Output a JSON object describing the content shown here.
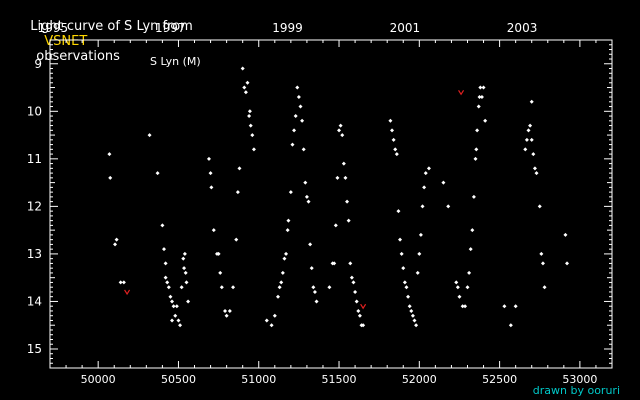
{
  "header": {
    "title_prefix": "Light curve of S Lyn from",
    "source": "VSNET",
    "title_suffix": "observations",
    "source_color": "#ffd700"
  },
  "credit": "drawn by ooruri",
  "colors": {
    "background": "#000000",
    "foreground": "#ffffff",
    "observation": "#ffffff",
    "fainter_than": "#e02020",
    "credit": "#00c8c8"
  },
  "chart_data": {
    "type": "scatter",
    "title": "Light curve of S Lyn from VSNET observations",
    "annotation": "S Lyn (M)",
    "xlabel": "",
    "ylabel": "",
    "xlim": [
      49700,
      53200
    ],
    "ylim": [
      15.4,
      8.5
    ],
    "y_inverted": true,
    "x_ticks": [
      50000,
      50500,
      51000,
      51500,
      52000,
      52500,
      53000
    ],
    "x_tick_labels": [
      "50000",
      "50500",
      "51000",
      "51500",
      "52000",
      "52500",
      "53000"
    ],
    "top_ticks": [
      {
        "label": "1995",
        "x": 49718
      },
      {
        "label": "1997",
        "x": 50449
      },
      {
        "label": "1999",
        "x": 51179
      },
      {
        "label": "2001",
        "x": 51910
      },
      {
        "label": "2003",
        "x": 52640
      }
    ],
    "y_ticks": [
      9,
      10,
      11,
      12,
      13,
      14,
      15
    ],
    "y_tick_labels": [
      "9",
      "10",
      "11",
      "12",
      "13",
      "14",
      "15"
    ],
    "grid": false,
    "series": [
      {
        "style": "observation",
        "points": [
          [
            50070,
            10.9
          ],
          [
            50075,
            11.4
          ],
          [
            50105,
            12.8
          ],
          [
            50115,
            12.7
          ],
          [
            50140,
            13.6
          ],
          [
            50160,
            13.6
          ],
          [
            50320,
            10.5
          ],
          [
            50370,
            11.3
          ],
          [
            50400,
            12.4
          ],
          [
            50410,
            12.9
          ],
          [
            50420,
            13.2
          ],
          [
            50420,
            13.5
          ],
          [
            50430,
            13.6
          ],
          [
            50440,
            13.7
          ],
          [
            50450,
            13.9
          ],
          [
            50460,
            14.0
          ],
          [
            50470,
            14.1
          ],
          [
            50480,
            14.3
          ],
          [
            50490,
            14.1
          ],
          [
            50500,
            14.4
          ],
          [
            50460,
            14.4
          ],
          [
            50510,
            14.5
          ],
          [
            50520,
            13.7
          ],
          [
            50530,
            13.1
          ],
          [
            50535,
            13.3
          ],
          [
            50540,
            13.0
          ],
          [
            50545,
            13.4
          ],
          [
            50550,
            13.6
          ],
          [
            50560,
            14.0
          ],
          [
            50690,
            11.0
          ],
          [
            50700,
            11.3
          ],
          [
            50705,
            11.6
          ],
          [
            50720,
            12.5
          ],
          [
            50740,
            13.0
          ],
          [
            50750,
            13.0
          ],
          [
            50760,
            13.4
          ],
          [
            50770,
            13.7
          ],
          [
            50790,
            14.2
          ],
          [
            50800,
            14.3
          ],
          [
            50820,
            14.2
          ],
          [
            50840,
            13.7
          ],
          [
            50860,
            12.7
          ],
          [
            50870,
            11.7
          ],
          [
            50880,
            11.2
          ],
          [
            50900,
            9.1
          ],
          [
            50910,
            9.5
          ],
          [
            50920,
            9.6
          ],
          [
            50930,
            9.4
          ],
          [
            50940,
            10.1
          ],
          [
            50945,
            10.0
          ],
          [
            50950,
            10.3
          ],
          [
            50960,
            10.5
          ],
          [
            50970,
            10.8
          ],
          [
            51050,
            14.4
          ],
          [
            51080,
            14.5
          ],
          [
            51100,
            14.3
          ],
          [
            51120,
            13.9
          ],
          [
            51130,
            13.7
          ],
          [
            51140,
            13.6
          ],
          [
            51150,
            13.4
          ],
          [
            51160,
            13.1
          ],
          [
            51170,
            13.0
          ],
          [
            51180,
            12.5
          ],
          [
            51185,
            12.3
          ],
          [
            51200,
            11.7
          ],
          [
            51210,
            10.7
          ],
          [
            51220,
            10.4
          ],
          [
            51230,
            10.1
          ],
          [
            51240,
            9.5
          ],
          [
            51250,
            9.7
          ],
          [
            51260,
            9.9
          ],
          [
            51270,
            10.2
          ],
          [
            51280,
            10.8
          ],
          [
            51290,
            11.5
          ],
          [
            51300,
            11.8
          ],
          [
            51310,
            11.9
          ],
          [
            51320,
            12.8
          ],
          [
            51330,
            13.3
          ],
          [
            51340,
            13.7
          ],
          [
            51350,
            13.8
          ],
          [
            51360,
            14.0
          ],
          [
            51440,
            13.7
          ],
          [
            51460,
            13.2
          ],
          [
            51470,
            13.2
          ],
          [
            51480,
            12.4
          ],
          [
            51490,
            11.4
          ],
          [
            51500,
            10.4
          ],
          [
            51510,
            10.3
          ],
          [
            51520,
            10.5
          ],
          [
            51530,
            11.1
          ],
          [
            51540,
            11.4
          ],
          [
            51550,
            11.9
          ],
          [
            51560,
            12.3
          ],
          [
            51570,
            13.2
          ],
          [
            51580,
            13.5
          ],
          [
            51590,
            13.6
          ],
          [
            51600,
            13.8
          ],
          [
            51610,
            14.0
          ],
          [
            51620,
            14.2
          ],
          [
            51630,
            14.3
          ],
          [
            51640,
            14.5
          ],
          [
            51650,
            14.5
          ],
          [
            51820,
            10.2
          ],
          [
            51830,
            10.4
          ],
          [
            51840,
            10.6
          ],
          [
            51850,
            10.8
          ],
          [
            51860,
            10.9
          ],
          [
            51870,
            12.1
          ],
          [
            51880,
            12.7
          ],
          [
            51890,
            13.0
          ],
          [
            51900,
            13.3
          ],
          [
            51910,
            13.6
          ],
          [
            51920,
            13.7
          ],
          [
            51930,
            13.9
          ],
          [
            51940,
            14.1
          ],
          [
            51950,
            14.2
          ],
          [
            51960,
            14.3
          ],
          [
            51970,
            14.4
          ],
          [
            51980,
            14.5
          ],
          [
            51990,
            13.4
          ],
          [
            52000,
            13.0
          ],
          [
            52010,
            12.6
          ],
          [
            52020,
            12.0
          ],
          [
            52030,
            11.6
          ],
          [
            52040,
            11.3
          ],
          [
            52060,
            11.2
          ],
          [
            52150,
            11.5
          ],
          [
            52180,
            12.0
          ],
          [
            52230,
            13.6
          ],
          [
            52240,
            13.7
          ],
          [
            52250,
            13.9
          ],
          [
            52270,
            14.1
          ],
          [
            52285,
            14.1
          ],
          [
            52300,
            13.7
          ],
          [
            52310,
            13.4
          ],
          [
            52320,
            12.9
          ],
          [
            52330,
            12.5
          ],
          [
            52340,
            11.8
          ],
          [
            52350,
            11.0
          ],
          [
            52355,
            10.8
          ],
          [
            52360,
            10.4
          ],
          [
            52370,
            9.9
          ],
          [
            52375,
            9.7
          ],
          [
            52380,
            9.5
          ],
          [
            52390,
            9.7
          ],
          [
            52400,
            9.5
          ],
          [
            52410,
            10.2
          ],
          [
            52530,
            14.1
          ],
          [
            52570,
            14.5
          ],
          [
            52600,
            14.1
          ],
          [
            52660,
            10.8
          ],
          [
            52670,
            10.6
          ],
          [
            52680,
            10.4
          ],
          [
            52690,
            10.3
          ],
          [
            52700,
            9.8
          ],
          [
            52700,
            10.6
          ],
          [
            52710,
            10.9
          ],
          [
            52720,
            11.2
          ],
          [
            52730,
            11.3
          ],
          [
            52750,
            12.0
          ],
          [
            52760,
            13.0
          ],
          [
            52770,
            13.2
          ],
          [
            52780,
            13.7
          ],
          [
            52910,
            12.6
          ],
          [
            52920,
            13.2
          ]
        ]
      },
      {
        "style": "fainter_than",
        "points": [
          [
            50180,
            13.8
          ],
          [
            51650,
            14.1
          ],
          [
            52260,
            9.6
          ]
        ]
      }
    ]
  }
}
